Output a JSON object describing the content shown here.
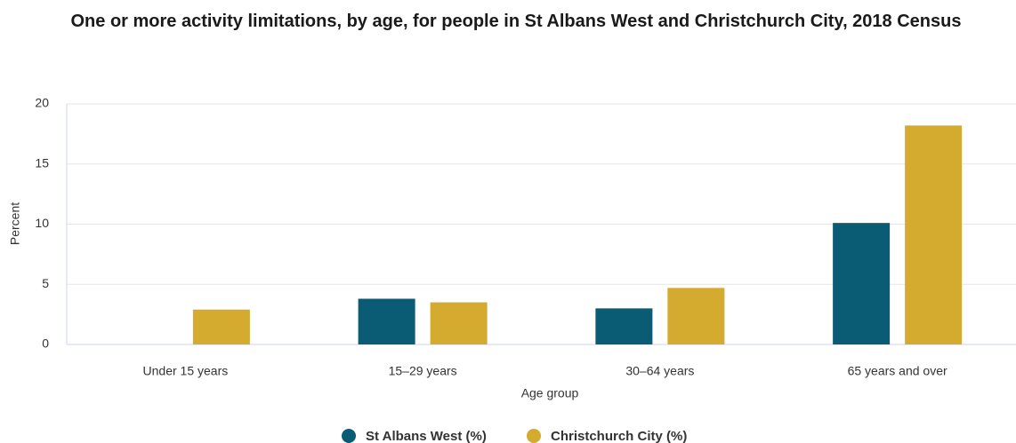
{
  "chart_data": {
    "type": "bar",
    "title": "One or more activity limitations, by age, for people in St Albans West and Christchurch City, 2018 Census",
    "x_label": "Age group",
    "y_label": "Percent",
    "categories": [
      "Under 15 years",
      "15–29 years",
      "30–64 years",
      "65 years and over"
    ],
    "series": [
      {
        "name": "St Albans West (%)",
        "color": "#0a5c75",
        "values": [
          0,
          3.8,
          3.0,
          10.1
        ]
      },
      {
        "name": "Christchurch City (%)",
        "color": "#d4aa2f",
        "values": [
          2.9,
          3.5,
          4.7,
          18.2
        ]
      }
    ],
    "ylim": [
      0,
      20
    ],
    "yticks": [
      0,
      5,
      10,
      15,
      20
    ],
    "grid": true,
    "legend": "bottom"
  }
}
